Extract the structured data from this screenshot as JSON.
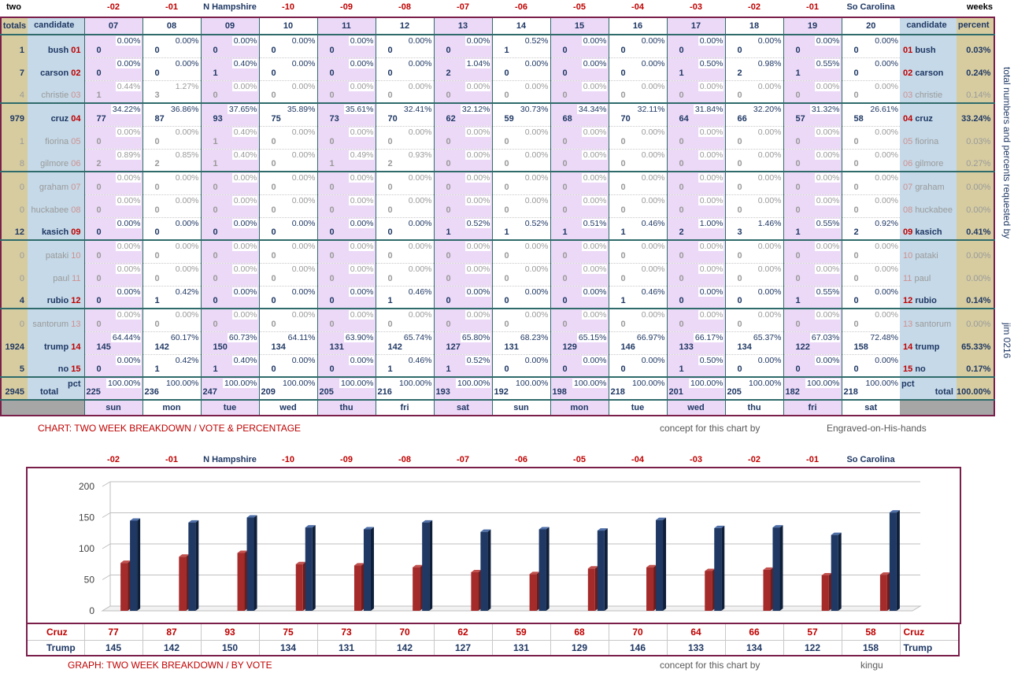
{
  "header": {
    "left_label": "two",
    "right_label": "weeks",
    "columns": [
      {
        "top": "-02",
        "num": "07",
        "day": "sun",
        "red": true
      },
      {
        "top": "-01",
        "num": "08",
        "day": "mon",
        "red": true
      },
      {
        "top": "N Hampshire",
        "num": "09",
        "day": "tue",
        "red": false
      },
      {
        "top": "-10",
        "num": "10",
        "day": "wed",
        "red": true
      },
      {
        "top": "-09",
        "num": "11",
        "day": "thu",
        "red": true
      },
      {
        "top": "-08",
        "num": "12",
        "day": "fri",
        "red": true
      },
      {
        "top": "-07",
        "num": "13",
        "day": "sat",
        "red": true
      },
      {
        "top": "-06",
        "num": "14",
        "day": "sun",
        "red": true
      },
      {
        "top": "-05",
        "num": "15",
        "day": "mon",
        "red": true
      },
      {
        "top": "-04",
        "num": "16",
        "day": "tue",
        "red": true
      },
      {
        "top": "-03",
        "num": "17",
        "day": "wed",
        "red": true
      },
      {
        "top": "-02",
        "num": "18",
        "day": "thu",
        "red": true
      },
      {
        "top": "-01",
        "num": "19",
        "day": "fri",
        "red": true
      },
      {
        "top": "So Carolina",
        "num": "20",
        "day": "sat",
        "red": false
      }
    ],
    "totals_label": "totals",
    "candidate_label": "candidate",
    "percent_label": "percent"
  },
  "rows": [
    {
      "total": "1",
      "name": "bush",
      "code": "01",
      "dim": false,
      "pct": "0.03%",
      "counts": [
        "0",
        "0",
        "0",
        "0",
        "0",
        "0",
        "0",
        "1",
        "0",
        "0",
        "0",
        "0",
        "0",
        "0"
      ],
      "pcts": [
        "0.00%",
        "0.00%",
        "0.00%",
        "0.00%",
        "0.00%",
        "0.00%",
        "0.00%",
        "0.52%",
        "0.00%",
        "0.00%",
        "0.00%",
        "0.00%",
        "0.00%",
        "0.00%"
      ]
    },
    {
      "total": "7",
      "name": "carson",
      "code": "02",
      "dim": false,
      "pct": "0.24%",
      "counts": [
        "0",
        "0",
        "1",
        "0",
        "0",
        "0",
        "2",
        "0",
        "0",
        "0",
        "1",
        "2",
        "1",
        "0"
      ],
      "pcts": [
        "0.00%",
        "0.00%",
        "0.40%",
        "0.00%",
        "0.00%",
        "0.00%",
        "1.04%",
        "0.00%",
        "0.00%",
        "0.00%",
        "0.50%",
        "0.98%",
        "0.55%",
        "0.00%"
      ]
    },
    {
      "total": "4",
      "name": "christie",
      "code": "03",
      "dim": true,
      "pct": "0.14%",
      "counts": [
        "1",
        "3",
        "0",
        "0",
        "0",
        "0",
        "0",
        "0",
        "0",
        "0",
        "0",
        "0",
        "0",
        "0"
      ],
      "pcts": [
        "0.44%",
        "1.27%",
        "0.00%",
        "0.00%",
        "0.00%",
        "0.00%",
        "0.00%",
        "0.00%",
        "0.00%",
        "0.00%",
        "0.00%",
        "0.00%",
        "0.00%",
        "0.00%"
      ]
    },
    {
      "total": "979",
      "name": "cruz",
      "code": "04",
      "dim": false,
      "pct": "33.24%",
      "counts": [
        "77",
        "87",
        "93",
        "75",
        "73",
        "70",
        "62",
        "59",
        "68",
        "70",
        "64",
        "66",
        "57",
        "58"
      ],
      "pcts": [
        "34.22%",
        "36.86%",
        "37.65%",
        "35.89%",
        "35.61%",
        "32.41%",
        "32.12%",
        "30.73%",
        "34.34%",
        "32.11%",
        "31.84%",
        "32.20%",
        "31.32%",
        "26.61%"
      ]
    },
    {
      "total": "1",
      "name": "fiorina",
      "code": "05",
      "dim": true,
      "pct": "0.03%",
      "counts": [
        "0",
        "0",
        "1",
        "0",
        "0",
        "0",
        "0",
        "0",
        "0",
        "0",
        "0",
        "0",
        "0",
        "0"
      ],
      "pcts": [
        "0.00%",
        "0.00%",
        "0.40%",
        "0.00%",
        "0.00%",
        "0.00%",
        "0.00%",
        "0.00%",
        "0.00%",
        "0.00%",
        "0.00%",
        "0.00%",
        "0.00%",
        "0.00%"
      ]
    },
    {
      "total": "8",
      "name": "gilmore",
      "code": "06",
      "dim": true,
      "pct": "0.27%",
      "counts": [
        "2",
        "2",
        "1",
        "0",
        "1",
        "2",
        "0",
        "0",
        "0",
        "0",
        "0",
        "0",
        "0",
        "0"
      ],
      "pcts": [
        "0.89%",
        "0.85%",
        "0.40%",
        "0.00%",
        "0.49%",
        "0.93%",
        "0.00%",
        "0.00%",
        "0.00%",
        "0.00%",
        "0.00%",
        "0.00%",
        "0.00%",
        "0.00%"
      ]
    },
    {
      "total": "0",
      "name": "graham",
      "code": "07",
      "dim": true,
      "pct": "0.00%",
      "counts": [
        "0",
        "0",
        "0",
        "0",
        "0",
        "0",
        "0",
        "0",
        "0",
        "0",
        "0",
        "0",
        "0",
        "0"
      ],
      "pcts": [
        "0.00%",
        "0.00%",
        "0.00%",
        "0.00%",
        "0.00%",
        "0.00%",
        "0.00%",
        "0.00%",
        "0.00%",
        "0.00%",
        "0.00%",
        "0.00%",
        "0.00%",
        "0.00%"
      ]
    },
    {
      "total": "0",
      "name": "huckabee",
      "code": "08",
      "dim": true,
      "pct": "0.00%",
      "counts": [
        "0",
        "0",
        "0",
        "0",
        "0",
        "0",
        "0",
        "0",
        "0",
        "0",
        "0",
        "0",
        "0",
        "0"
      ],
      "pcts": [
        "0.00%",
        "0.00%",
        "0.00%",
        "0.00%",
        "0.00%",
        "0.00%",
        "0.00%",
        "0.00%",
        "0.00%",
        "0.00%",
        "0.00%",
        "0.00%",
        "0.00%",
        "0.00%"
      ]
    },
    {
      "total": "12",
      "name": "kasich",
      "code": "09",
      "dim": false,
      "pct": "0.41%",
      "counts": [
        "0",
        "0",
        "0",
        "0",
        "0",
        "0",
        "1",
        "1",
        "1",
        "1",
        "2",
        "3",
        "1",
        "2"
      ],
      "pcts": [
        "0.00%",
        "0.00%",
        "0.00%",
        "0.00%",
        "0.00%",
        "0.00%",
        "0.52%",
        "0.52%",
        "0.51%",
        "0.46%",
        "1.00%",
        "1.46%",
        "0.55%",
        "0.92%"
      ]
    },
    {
      "total": "0",
      "name": "pataki",
      "code": "10",
      "dim": true,
      "pct": "0.00%",
      "counts": [
        "0",
        "0",
        "0",
        "0",
        "0",
        "0",
        "0",
        "0",
        "0",
        "0",
        "0",
        "0",
        "0",
        "0"
      ],
      "pcts": [
        "0.00%",
        "0.00%",
        "0.00%",
        "0.00%",
        "0.00%",
        "0.00%",
        "0.00%",
        "0.00%",
        "0.00%",
        "0.00%",
        "0.00%",
        "0.00%",
        "0.00%",
        "0.00%"
      ]
    },
    {
      "total": "0",
      "name": "paul",
      "code": "11",
      "dim": true,
      "pct": "0.00%",
      "counts": [
        "0",
        "0",
        "0",
        "0",
        "0",
        "0",
        "0",
        "0",
        "0",
        "0",
        "0",
        "0",
        "0",
        "0"
      ],
      "pcts": [
        "0.00%",
        "0.00%",
        "0.00%",
        "0.00%",
        "0.00%",
        "0.00%",
        "0.00%",
        "0.00%",
        "0.00%",
        "0.00%",
        "0.00%",
        "0.00%",
        "0.00%",
        "0.00%"
      ]
    },
    {
      "total": "4",
      "name": "rubio",
      "code": "12",
      "dim": false,
      "pct": "0.14%",
      "counts": [
        "0",
        "1",
        "0",
        "0",
        "0",
        "1",
        "0",
        "0",
        "0",
        "1",
        "0",
        "0",
        "1",
        "0"
      ],
      "pcts": [
        "0.00%",
        "0.42%",
        "0.00%",
        "0.00%",
        "0.00%",
        "0.46%",
        "0.00%",
        "0.00%",
        "0.00%",
        "0.46%",
        "0.00%",
        "0.00%",
        "0.55%",
        "0.00%"
      ]
    },
    {
      "total": "0",
      "name": "santorum",
      "code": "13",
      "dim": true,
      "pct": "0.00%",
      "counts": [
        "0",
        "0",
        "0",
        "0",
        "0",
        "0",
        "0",
        "0",
        "0",
        "0",
        "0",
        "0",
        "0",
        "0"
      ],
      "pcts": [
        "0.00%",
        "0.00%",
        "0.00%",
        "0.00%",
        "0.00%",
        "0.00%",
        "0.00%",
        "0.00%",
        "0.00%",
        "0.00%",
        "0.00%",
        "0.00%",
        "0.00%",
        "0.00%"
      ]
    },
    {
      "total": "1924",
      "name": "trump",
      "code": "14",
      "dim": false,
      "pct": "65.33%",
      "counts": [
        "145",
        "142",
        "150",
        "134",
        "131",
        "142",
        "127",
        "131",
        "129",
        "146",
        "133",
        "134",
        "122",
        "158"
      ],
      "pcts": [
        "64.44%",
        "60.17%",
        "60.73%",
        "64.11%",
        "63.90%",
        "65.74%",
        "65.80%",
        "68.23%",
        "65.15%",
        "66.97%",
        "66.17%",
        "65.37%",
        "67.03%",
        "72.48%"
      ]
    },
    {
      "total": "5",
      "name": "no",
      "code": "15",
      "dim": false,
      "pct": "0.17%",
      "counts": [
        "0",
        "1",
        "1",
        "0",
        "0",
        "1",
        "1",
        "0",
        "0",
        "0",
        "1",
        "0",
        "0",
        "0"
      ],
      "pcts": [
        "0.00%",
        "0.42%",
        "0.40%",
        "0.00%",
        "0.00%",
        "0.46%",
        "0.52%",
        "0.00%",
        "0.00%",
        "0.00%",
        "0.50%",
        "0.00%",
        "0.00%",
        "0.00%"
      ]
    }
  ],
  "total_row": {
    "total": "2945",
    "label": "total",
    "pct_label": "pct",
    "pct": "100.00%",
    "counts": [
      "225",
      "236",
      "247",
      "209",
      "205",
      "216",
      "193",
      "192",
      "198",
      "218",
      "201",
      "205",
      "182",
      "218"
    ],
    "pcts": [
      "100.00%",
      "100.00%",
      "100.00%",
      "100.00%",
      "100.00%",
      "100.00%",
      "100.00%",
      "100.00%",
      "100.00%",
      "100.00%",
      "100.00%",
      "100.00%",
      "100.00%",
      "100.00%"
    ]
  },
  "side_text": "total numbers and percents requested by",
  "side_text2": "jim 0216",
  "caption1": "CHART: TWO WEEK BREAKDOWN / VOTE & PERCENTAGE",
  "credit1": "concept for this chart by",
  "credit1_name": "Engraved-on-His-hands",
  "caption2": "GRAPH: TWO WEEK BREAKDOWN / BY VOTE",
  "credit2": "concept for this chart by",
  "credit2_name": "kingu",
  "colors": {
    "cruz": "#a52a2a",
    "trump": "#1f3864",
    "accent": "#c00000"
  },
  "chart_data": {
    "type": "bar",
    "categories": [
      "-02",
      "-01",
      "N Hampshire",
      "-10",
      "-09",
      "-08",
      "-07",
      "-06",
      "-05",
      "-04",
      "-03",
      "-02",
      "-01",
      "So Carolina"
    ],
    "series": [
      {
        "name": "Cruz",
        "values": [
          77,
          87,
          93,
          75,
          73,
          70,
          62,
          59,
          68,
          70,
          64,
          66,
          57,
          58
        ]
      },
      {
        "name": "Trump",
        "values": [
          145,
          142,
          150,
          134,
          131,
          142,
          127,
          131,
          129,
          146,
          133,
          134,
          122,
          158
        ]
      }
    ],
    "yticks": [
      "0",
      "50",
      "100",
      "150",
      "200"
    ],
    "ylim": [
      0,
      200
    ],
    "grid": true
  }
}
